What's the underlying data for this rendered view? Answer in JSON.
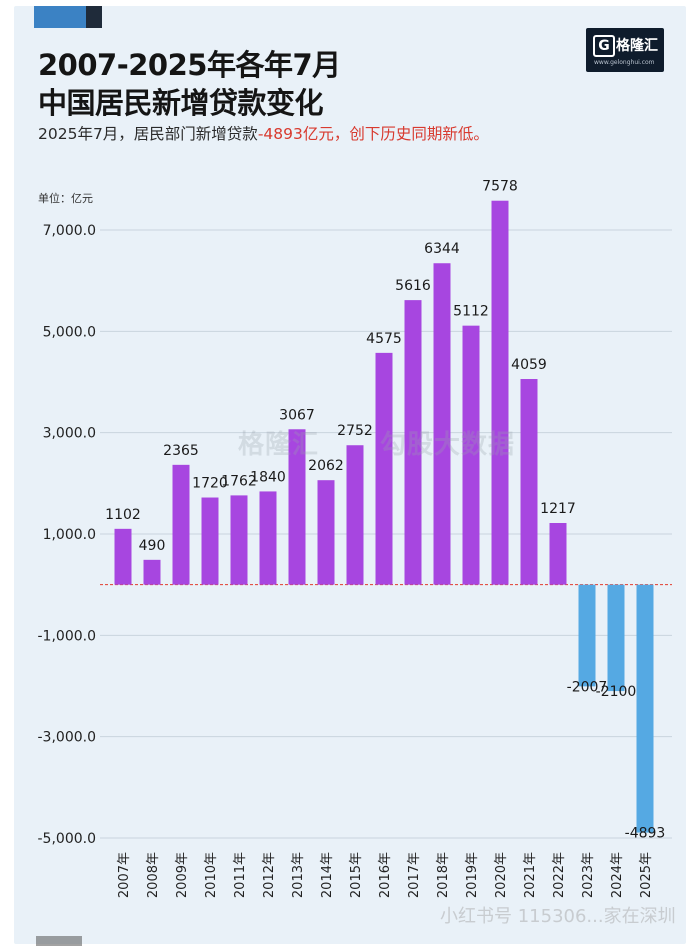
{
  "header": {
    "title_line1": "2007-2025年各年7月",
    "title_line2": "中国居民新增贷款变化",
    "subtitle_prefix": "2025年7月，居民部门新增贷款",
    "subtitle_value": "-4893亿元",
    "subtitle_suffix": "，创下历史同期新低。"
  },
  "logo": {
    "text": "格隆汇",
    "mark": "G",
    "url": "www.gelonghui.com"
  },
  "watermark": {
    "logo_text": "格隆汇",
    "data_text": "勾股大数据",
    "footer_text": "小红书号 115306...家在深圳"
  },
  "colors": {
    "positive_bar": "#a746e0",
    "negative_bar": "#55a9e3",
    "zero_line": "#e23b2e",
    "accent": "#d83a2f"
  },
  "chart_data": {
    "type": "bar",
    "unit_label": "单位：亿元",
    "categories": [
      "2007年",
      "2008年",
      "2009年",
      "2010年",
      "2011年",
      "2012年",
      "2013年",
      "2014年",
      "2015年",
      "2016年",
      "2017年",
      "2018年",
      "2019年",
      "2020年",
      "2021年",
      "2022年",
      "2023年",
      "2024年",
      "2025年"
    ],
    "values": [
      1102,
      490,
      2365,
      1720,
      1762,
      1840,
      3067,
      2062,
      2752,
      4575,
      5616,
      6344,
      5112,
      7578,
      4059,
      1217,
      -2007,
      -2100,
      -4893
    ],
    "yticks": [
      7000,
      5000,
      3000,
      1000,
      -1000,
      -3000,
      -5000
    ],
    "ytick_labels": [
      "7,000.0",
      "5,000.0",
      "3,000.0",
      "1,000.0",
      "-1,000.0",
      "-3,000.0",
      "-5,000.0"
    ],
    "ylim": [
      -5000,
      7578
    ],
    "grid": true
  }
}
